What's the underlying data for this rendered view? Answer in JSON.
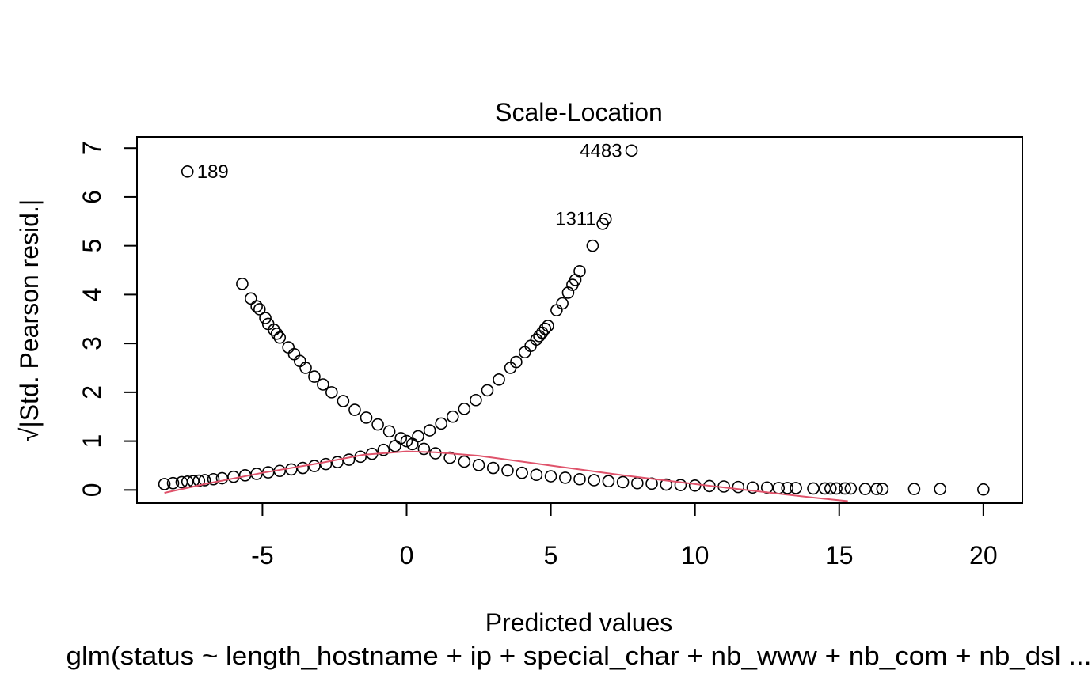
{
  "chart_data": {
    "type": "scatter",
    "title": "Scale-Location",
    "xlabel": "Predicted values",
    "ylabel": "√|Std. Pearson resid.|",
    "subtitle": "glm(status ~ length_hostname + ip + special_char + nb_www + nb_com + nb_dsl ...",
    "xlim": [
      -9.35,
      21.35
    ],
    "ylim": [
      -0.27,
      7.23
    ],
    "x_ticks": [
      -5,
      0,
      5,
      10,
      15,
      20
    ],
    "y_ticks": [
      0,
      1,
      2,
      3,
      4,
      5,
      6,
      7
    ],
    "grid": false,
    "series": [
      {
        "marker": "open-circle",
        "points": [
          [
            -8.4,
            0.12
          ],
          [
            -8.1,
            0.14
          ],
          [
            -7.8,
            0.16
          ],
          [
            -7.6,
            0.17
          ],
          [
            -7.4,
            0.18
          ],
          [
            -7.2,
            0.19
          ],
          [
            -7.0,
            0.2
          ],
          [
            -6.7,
            0.22
          ],
          [
            -6.4,
            0.24
          ],
          [
            -6.0,
            0.27
          ],
          [
            -5.6,
            0.3
          ],
          [
            -5.2,
            0.33
          ],
          [
            -4.8,
            0.36
          ],
          [
            -4.4,
            0.39
          ],
          [
            -4.0,
            0.42
          ],
          [
            -3.6,
            0.45
          ],
          [
            -3.2,
            0.49
          ],
          [
            -2.8,
            0.53
          ],
          [
            -2.4,
            0.57
          ],
          [
            -2.0,
            0.62
          ],
          [
            -1.6,
            0.68
          ],
          [
            -1.2,
            0.74
          ],
          [
            -0.8,
            0.82
          ],
          [
            -0.4,
            0.9
          ],
          [
            0.0,
            1.0
          ],
          [
            0.4,
            1.1
          ],
          [
            0.8,
            1.22
          ],
          [
            1.2,
            1.36
          ],
          [
            1.6,
            1.5
          ],
          [
            2.0,
            1.66
          ],
          [
            2.4,
            1.84
          ],
          [
            2.8,
            2.04
          ],
          [
            3.2,
            2.26
          ],
          [
            3.6,
            2.5
          ],
          [
            3.8,
            2.62
          ],
          [
            4.1,
            2.82
          ],
          [
            4.3,
            2.95
          ],
          [
            4.5,
            3.08
          ],
          [
            4.6,
            3.15
          ],
          [
            4.7,
            3.22
          ],
          [
            4.8,
            3.3
          ],
          [
            4.9,
            3.36
          ],
          [
            5.2,
            3.68
          ],
          [
            5.4,
            3.82
          ],
          [
            5.6,
            4.04
          ],
          [
            5.75,
            4.2
          ],
          [
            5.85,
            4.3
          ],
          [
            6.0,
            4.48
          ],
          [
            6.45,
            5.0
          ],
          [
            6.8,
            5.45
          ],
          [
            6.9,
            5.55
          ],
          [
            7.8,
            6.95
          ],
          [
            -7.6,
            6.52
          ],
          [
            -5.7,
            4.22
          ],
          [
            -5.4,
            3.92
          ],
          [
            -5.2,
            3.76
          ],
          [
            -5.1,
            3.7
          ],
          [
            -4.9,
            3.52
          ],
          [
            -4.8,
            3.4
          ],
          [
            -4.6,
            3.28
          ],
          [
            -4.5,
            3.2
          ],
          [
            -4.4,
            3.12
          ],
          [
            -4.1,
            2.92
          ],
          [
            -3.9,
            2.78
          ],
          [
            -3.7,
            2.64
          ],
          [
            -3.5,
            2.5
          ],
          [
            -3.2,
            2.32
          ],
          [
            -2.9,
            2.16
          ],
          [
            -2.6,
            2.0
          ],
          [
            -2.2,
            1.82
          ],
          [
            -1.8,
            1.64
          ],
          [
            -1.4,
            1.48
          ],
          [
            -1.0,
            1.34
          ],
          [
            -0.6,
            1.2
          ],
          [
            -0.2,
            1.06
          ],
          [
            0.2,
            0.94
          ],
          [
            0.6,
            0.84
          ],
          [
            1.0,
            0.75
          ],
          [
            1.5,
            0.66
          ],
          [
            2.0,
            0.58
          ],
          [
            2.5,
            0.51
          ],
          [
            3.0,
            0.45
          ],
          [
            3.5,
            0.4
          ],
          [
            4.0,
            0.35
          ],
          [
            4.5,
            0.31
          ],
          [
            5.0,
            0.28
          ],
          [
            5.5,
            0.25
          ],
          [
            6.0,
            0.22
          ],
          [
            6.5,
            0.2
          ],
          [
            7.0,
            0.18
          ],
          [
            7.5,
            0.16
          ],
          [
            8.0,
            0.14
          ],
          [
            8.5,
            0.13
          ],
          [
            9.0,
            0.11
          ],
          [
            9.5,
            0.1
          ],
          [
            10.0,
            0.09
          ],
          [
            10.5,
            0.08
          ],
          [
            11.0,
            0.07
          ],
          [
            11.5,
            0.06
          ],
          [
            12.0,
            0.05
          ],
          [
            12.5,
            0.05
          ],
          [
            12.9,
            0.04
          ],
          [
            13.2,
            0.04
          ],
          [
            13.5,
            0.04
          ],
          [
            14.1,
            0.03
          ],
          [
            14.5,
            0.03
          ],
          [
            14.7,
            0.03
          ],
          [
            14.9,
            0.03
          ],
          [
            15.2,
            0.03
          ],
          [
            15.4,
            0.03
          ],
          [
            15.9,
            0.02
          ],
          [
            16.3,
            0.02
          ],
          [
            16.5,
            0.02
          ],
          [
            17.6,
            0.02
          ],
          [
            18.5,
            0.02
          ],
          [
            20.0,
            0.01
          ]
        ]
      },
      {
        "type": "line",
        "color": "#DF536B",
        "points": [
          [
            -8.4,
            -0.06
          ],
          [
            -7.0,
            0.12
          ],
          [
            -5.0,
            0.35
          ],
          [
            -3.0,
            0.55
          ],
          [
            -1.5,
            0.72
          ],
          [
            0.0,
            0.79
          ],
          [
            1.0,
            0.77
          ],
          [
            2.5,
            0.7
          ],
          [
            5.0,
            0.5
          ],
          [
            7.5,
            0.3
          ],
          [
            10.0,
            0.12
          ],
          [
            12.5,
            -0.05
          ],
          [
            14.0,
            -0.15
          ],
          [
            15.3,
            -0.23
          ]
        ]
      }
    ],
    "annotations": [
      {
        "text": "189",
        "x": -7.6,
        "y": 6.52,
        "pos": "right"
      },
      {
        "text": "4483",
        "x": 7.8,
        "y": 6.95,
        "pos": "left"
      },
      {
        "text": "1311",
        "x": 6.9,
        "y": 5.55,
        "pos": "left"
      }
    ]
  }
}
